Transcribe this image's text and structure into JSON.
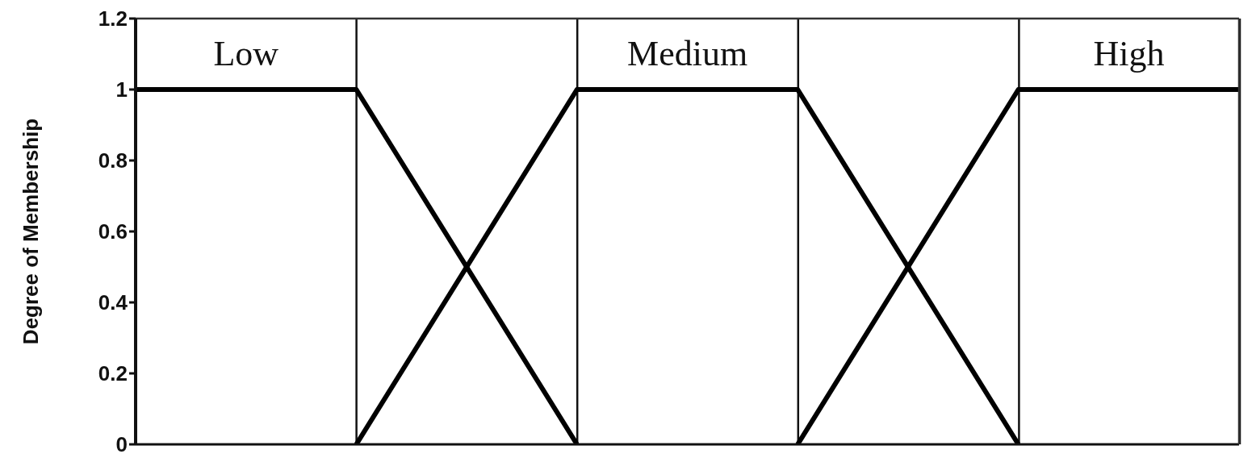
{
  "chart_data": {
    "type": "line",
    "ylabel": "Degree of Membership",
    "categories": [
      null,
      null,
      null,
      null,
      null,
      null
    ],
    "series": [
      {
        "name": "Low",
        "color": "#000000",
        "values": [
          1,
          1,
          0,
          null,
          null,
          null
        ]
      },
      {
        "name": "Medium",
        "color": "#000000",
        "values": [
          null,
          0,
          1,
          1,
          0,
          null
        ]
      },
      {
        "name": "High",
        "color": "#000000",
        "values": [
          null,
          null,
          null,
          0,
          1,
          1
        ]
      }
    ],
    "ylim": [
      0,
      1.2
    ],
    "yticks": [
      0,
      0.2,
      0.4,
      0.6,
      0.8,
      1,
      1.2
    ],
    "grid": "x",
    "legend": false,
    "marker": "none",
    "line_style": "solid",
    "tick_labels": "y"
  }
}
